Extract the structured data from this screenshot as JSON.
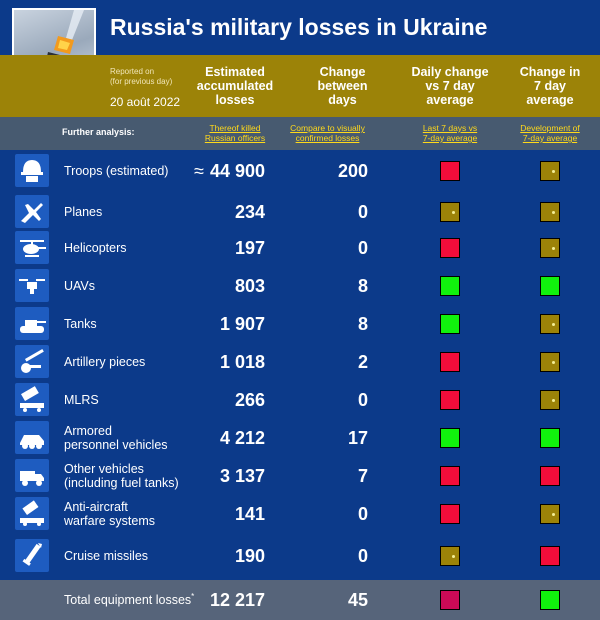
{
  "title": "Russia's military losses in Ukraine",
  "reported_on": "Reported on\n(for previous day)",
  "date": "20 août 2022",
  "columns": {
    "estimated": "Estimated\naccumulated\nlosses",
    "change": "Change\nbetween\ndays",
    "daily": "Daily change\nvs 7 day\naverage",
    "trend": "Change in\n7 day\naverage"
  },
  "further_analysis": {
    "label": "Further analysis:",
    "officers_link": "Thereof killed\nRussian officers",
    "compare_link": "Compare to visually\nconfirmed losses",
    "last7_link": "Last 7 days vs\n7-day average",
    "development_link": "Development of\n7-day average"
  },
  "colors": {
    "red": "#f20d3a",
    "green": "#11f20d",
    "olive": "#9c8308",
    "blue_bg": "#0c3a8a",
    "total_red": "#cc0a56"
  },
  "rows": [
    {
      "label": "Troops (estimated)",
      "approx": "≈",
      "value": "44 900",
      "change": "200",
      "daily": "red",
      "trend": "olive",
      "icon": "helmet-icon"
    },
    {
      "label": "Planes",
      "value": "234",
      "change": "0",
      "daily": "olive",
      "trend": "olive",
      "icon": "plane-icon"
    },
    {
      "label": "Helicopters",
      "value": "197",
      "change": "0",
      "daily": "red",
      "trend": "olive",
      "icon": "helicopter-icon"
    },
    {
      "label": "UAVs",
      "value": "803",
      "change": "8",
      "daily": "green",
      "trend": "green",
      "icon": "drone-icon"
    },
    {
      "label": "Tanks",
      "value": "1 907",
      "change": "8",
      "daily": "green",
      "trend": "olive",
      "icon": "tank-icon"
    },
    {
      "label": "Artillery pieces",
      "value": "1 018",
      "change": "2",
      "daily": "red",
      "trend": "olive",
      "icon": "artillery-icon"
    },
    {
      "label": "MLRS",
      "value": "266",
      "change": "0",
      "daily": "red",
      "trend": "olive",
      "icon": "rocket-launcher-icon"
    },
    {
      "label": "Armored\npersonnel vehicles",
      "value": "4 212",
      "change": "17",
      "daily": "green",
      "trend": "green",
      "icon": "apc-icon"
    },
    {
      "label": "Other vehicles\n(including fuel tanks)",
      "value": "3 137",
      "change": "7",
      "daily": "red",
      "trend": "red",
      "icon": "truck-icon"
    },
    {
      "label": "Anti-aircraft\nwarfare systems",
      "value": "141",
      "change": "0",
      "daily": "red",
      "trend": "olive",
      "icon": "anti-aircraft-icon"
    },
    {
      "label": "Cruise missiles",
      "value": "190",
      "change": "0",
      "daily": "olive",
      "trend": "red",
      "icon": "missile-icon"
    }
  ],
  "total": {
    "label": "Total equipment losses",
    "marker": "*",
    "value": "12 217",
    "change": "45",
    "daily": "total_red",
    "trend": "green"
  }
}
